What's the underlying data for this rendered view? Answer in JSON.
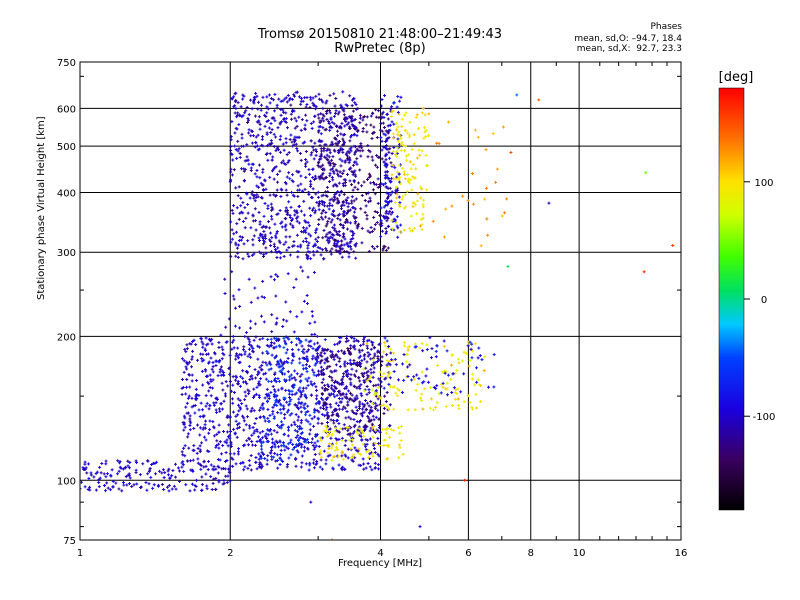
{
  "header": {
    "title_line1": "Tromsø 20150810 21:48:00–21:49:43",
    "title_line2": "RwPretec (8p)"
  },
  "stats": {
    "title": "Phases",
    "o_mode": "mean, sd,O: –94.7, 18.4",
    "x_mode": "mean, sd,X:  92.7, 23.3"
  },
  "colorbar": {
    "unit_label": "[deg]",
    "ticks": [
      "100",
      "0",
      "-100"
    ],
    "tick_values": [
      100,
      0,
      -100
    ],
    "range": [
      -180,
      180
    ]
  },
  "chart_data": {
    "type": "scatter",
    "xlabel": "Frequency [MHz]",
    "ylabel": "Stationary phase Virtual Height [km]",
    "x_scale": "log",
    "y_scale": "log",
    "xlim": [
      1,
      16
    ],
    "ylim": [
      75,
      750
    ],
    "x_ticks": [
      1,
      2,
      4,
      6,
      8,
      10,
      16
    ],
    "x_tick_labels": [
      "1",
      "2",
      "4",
      "6",
      "8",
      "10",
      "16"
    ],
    "y_ticks": [
      75,
      100,
      200,
      300,
      400,
      500,
      600,
      750
    ],
    "y_tick_labels": [
      "75",
      "100",
      "200",
      "300",
      "400",
      "500",
      "600",
      "750"
    ],
    "grid": true,
    "color_by": "phase [deg]",
    "regions": [
      {
        "f_min": 2.0,
        "f_max": 3.6,
        "h_min": 290,
        "h_max": 650,
        "phase": -105,
        "count": 900
      },
      {
        "f_min": 3.0,
        "f_max": 4.2,
        "h_min": 300,
        "h_max": 600,
        "phase": -125,
        "count": 350
      },
      {
        "f_min": 4.0,
        "f_max": 4.4,
        "h_min": 320,
        "h_max": 640,
        "phase": -90,
        "count": 120
      },
      {
        "f_min": 4.2,
        "f_max": 5.0,
        "h_min": 330,
        "h_max": 600,
        "phase": 95,
        "count": 130
      },
      {
        "f_min": 4.9,
        "f_max": 7.2,
        "h_min": 300,
        "h_max": 650,
        "phase": 120,
        "count": 25
      },
      {
        "f_min": 1.0,
        "f_max": 2.0,
        "h_min": 95,
        "h_max": 110,
        "phase": -100,
        "count": 180
      },
      {
        "f_min": 1.6,
        "f_max": 4.0,
        "h_min": 105,
        "h_max": 200,
        "phase": -100,
        "count": 1100
      },
      {
        "f_min": 3.0,
        "f_max": 4.2,
        "h_min": 125,
        "h_max": 190,
        "phase": -125,
        "count": 220
      },
      {
        "f_min": 2.3,
        "f_max": 3.0,
        "h_min": 110,
        "h_max": 200,
        "phase": -65,
        "count": 180
      },
      {
        "f_min": 3.0,
        "f_max": 4.5,
        "h_min": 110,
        "h_max": 130,
        "phase": 95,
        "count": 90
      },
      {
        "f_min": 3.7,
        "f_max": 6.5,
        "h_min": 140,
        "h_max": 195,
        "phase": 95,
        "count": 130
      },
      {
        "f_min": 4.0,
        "f_max": 6.8,
        "h_min": 150,
        "h_max": 200,
        "phase": -85,
        "count": 70
      },
      {
        "f_min": 1.9,
        "f_max": 3.0,
        "h_min": 200,
        "h_max": 280,
        "phase": -100,
        "count": 60
      }
    ],
    "sparse_points": [
      {
        "f": 7.5,
        "h": 640,
        "phase": -40
      },
      {
        "f": 8.3,
        "h": 625,
        "phase": 140
      },
      {
        "f": 7.3,
        "h": 485,
        "phase": 150
      },
      {
        "f": 8.7,
        "h": 380,
        "phase": -110
      },
      {
        "f": 13.6,
        "h": 440,
        "phase": 45
      },
      {
        "f": 15.4,
        "h": 310,
        "phase": 160
      },
      {
        "f": 13.5,
        "h": 273,
        "phase": 165
      },
      {
        "f": 7.2,
        "h": 280,
        "phase": 10
      },
      {
        "f": 6.8,
        "h": 420,
        "phase": 130
      },
      {
        "f": 6.2,
        "h": 540,
        "phase": 110
      },
      {
        "f": 5.9,
        "h": 100,
        "phase": 170
      },
      {
        "f": 3.2,
        "h": 75,
        "phase": 150
      },
      {
        "f": 4.8,
        "h": 80,
        "phase": -90
      },
      {
        "f": 2.9,
        "h": 90,
        "phase": -100
      }
    ]
  }
}
